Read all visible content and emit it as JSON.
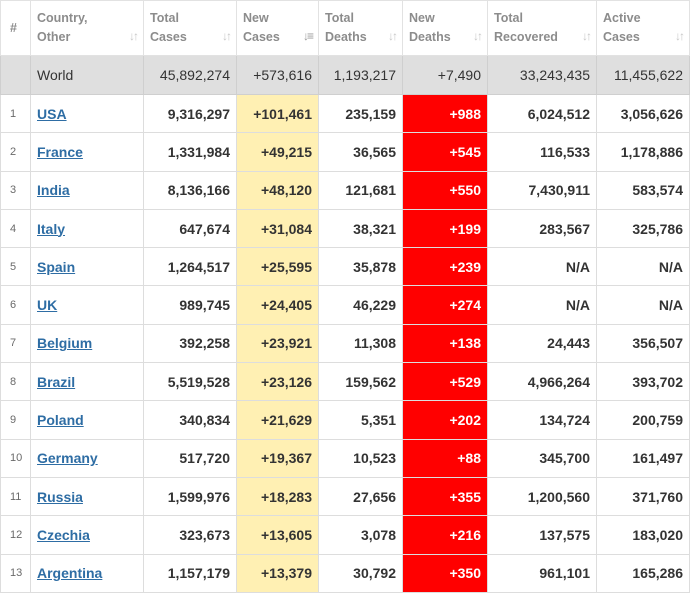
{
  "headers": [
    {
      "line1": "#",
      "line2": ""
    },
    {
      "line1": "Country,",
      "line2": "Other"
    },
    {
      "line1": "Total",
      "line2": "Cases"
    },
    {
      "line1": "New",
      "line2": "Cases"
    },
    {
      "line1": "Total",
      "line2": "Deaths"
    },
    {
      "line1": "New",
      "line2": "Deaths"
    },
    {
      "line1": "Total",
      "line2": "Recovered"
    },
    {
      "line1": "Active",
      "line2": "Cases"
    }
  ],
  "world": {
    "label": "World",
    "total_cases": "45,892,274",
    "new_cases": "+573,616",
    "total_deaths": "1,193,217",
    "new_deaths": "+7,490",
    "total_recovered": "33,243,435",
    "active_cases": "11,455,622"
  },
  "rows": [
    {
      "num": "1",
      "country": "USA",
      "total_cases": "9,316,297",
      "new_cases": "+101,461",
      "total_deaths": "235,159",
      "new_deaths": "+988",
      "total_recovered": "6,024,512",
      "active_cases": "3,056,626"
    },
    {
      "num": "2",
      "country": "France",
      "total_cases": "1,331,984",
      "new_cases": "+49,215",
      "total_deaths": "36,565",
      "new_deaths": "+545",
      "total_recovered": "116,533",
      "active_cases": "1,178,886"
    },
    {
      "num": "3",
      "country": "India",
      "total_cases": "8,136,166",
      "new_cases": "+48,120",
      "total_deaths": "121,681",
      "new_deaths": "+550",
      "total_recovered": "7,430,911",
      "active_cases": "583,574"
    },
    {
      "num": "4",
      "country": "Italy",
      "total_cases": "647,674",
      "new_cases": "+31,084",
      "total_deaths": "38,321",
      "new_deaths": "+199",
      "total_recovered": "283,567",
      "active_cases": "325,786"
    },
    {
      "num": "5",
      "country": "Spain",
      "total_cases": "1,264,517",
      "new_cases": "+25,595",
      "total_deaths": "35,878",
      "new_deaths": "+239",
      "total_recovered": "N/A",
      "active_cases": "N/A"
    },
    {
      "num": "6",
      "country": "UK",
      "total_cases": "989,745",
      "new_cases": "+24,405",
      "total_deaths": "46,229",
      "new_deaths": "+274",
      "total_recovered": "N/A",
      "active_cases": "N/A"
    },
    {
      "num": "7",
      "country": "Belgium",
      "total_cases": "392,258",
      "new_cases": "+23,921",
      "total_deaths": "11,308",
      "new_deaths": "+138",
      "total_recovered": "24,443",
      "active_cases": "356,507"
    },
    {
      "num": "8",
      "country": "Brazil",
      "total_cases": "5,519,528",
      "new_cases": "+23,126",
      "total_deaths": "159,562",
      "new_deaths": "+529",
      "total_recovered": "4,966,264",
      "active_cases": "393,702"
    },
    {
      "num": "9",
      "country": "Poland",
      "total_cases": "340,834",
      "new_cases": "+21,629",
      "total_deaths": "5,351",
      "new_deaths": "+202",
      "total_recovered": "134,724",
      "active_cases": "200,759"
    },
    {
      "num": "10",
      "country": "Germany",
      "total_cases": "517,720",
      "new_cases": "+19,367",
      "total_deaths": "10,523",
      "new_deaths": "+88",
      "total_recovered": "345,700",
      "active_cases": "161,497"
    },
    {
      "num": "11",
      "country": "Russia",
      "total_cases": "1,599,976",
      "new_cases": "+18,283",
      "total_deaths": "27,656",
      "new_deaths": "+355",
      "total_recovered": "1,200,560",
      "active_cases": "371,760"
    },
    {
      "num": "12",
      "country": "Czechia",
      "total_cases": "323,673",
      "new_cases": "+13,605",
      "total_deaths": "3,078",
      "new_deaths": "+216",
      "total_recovered": "137,575",
      "active_cases": "183,020"
    },
    {
      "num": "13",
      "country": "Argentina",
      "total_cases": "1,157,179",
      "new_cases": "+13,379",
      "total_deaths": "30,792",
      "new_deaths": "+350",
      "total_recovered": "961,101",
      "active_cases": "165,286"
    }
  ],
  "sort": {
    "column": "New Cases",
    "direction": "descending"
  },
  "colors": {
    "new_cases_bg": "#fff0b3",
    "new_deaths_bg": "#ff0000",
    "link": "#2e6da4",
    "world_bg": "#dfdfdf"
  },
  "icons": {
    "sort_inactive": "sort-arrows-icon",
    "sort_active": "sort-desc-icon"
  }
}
